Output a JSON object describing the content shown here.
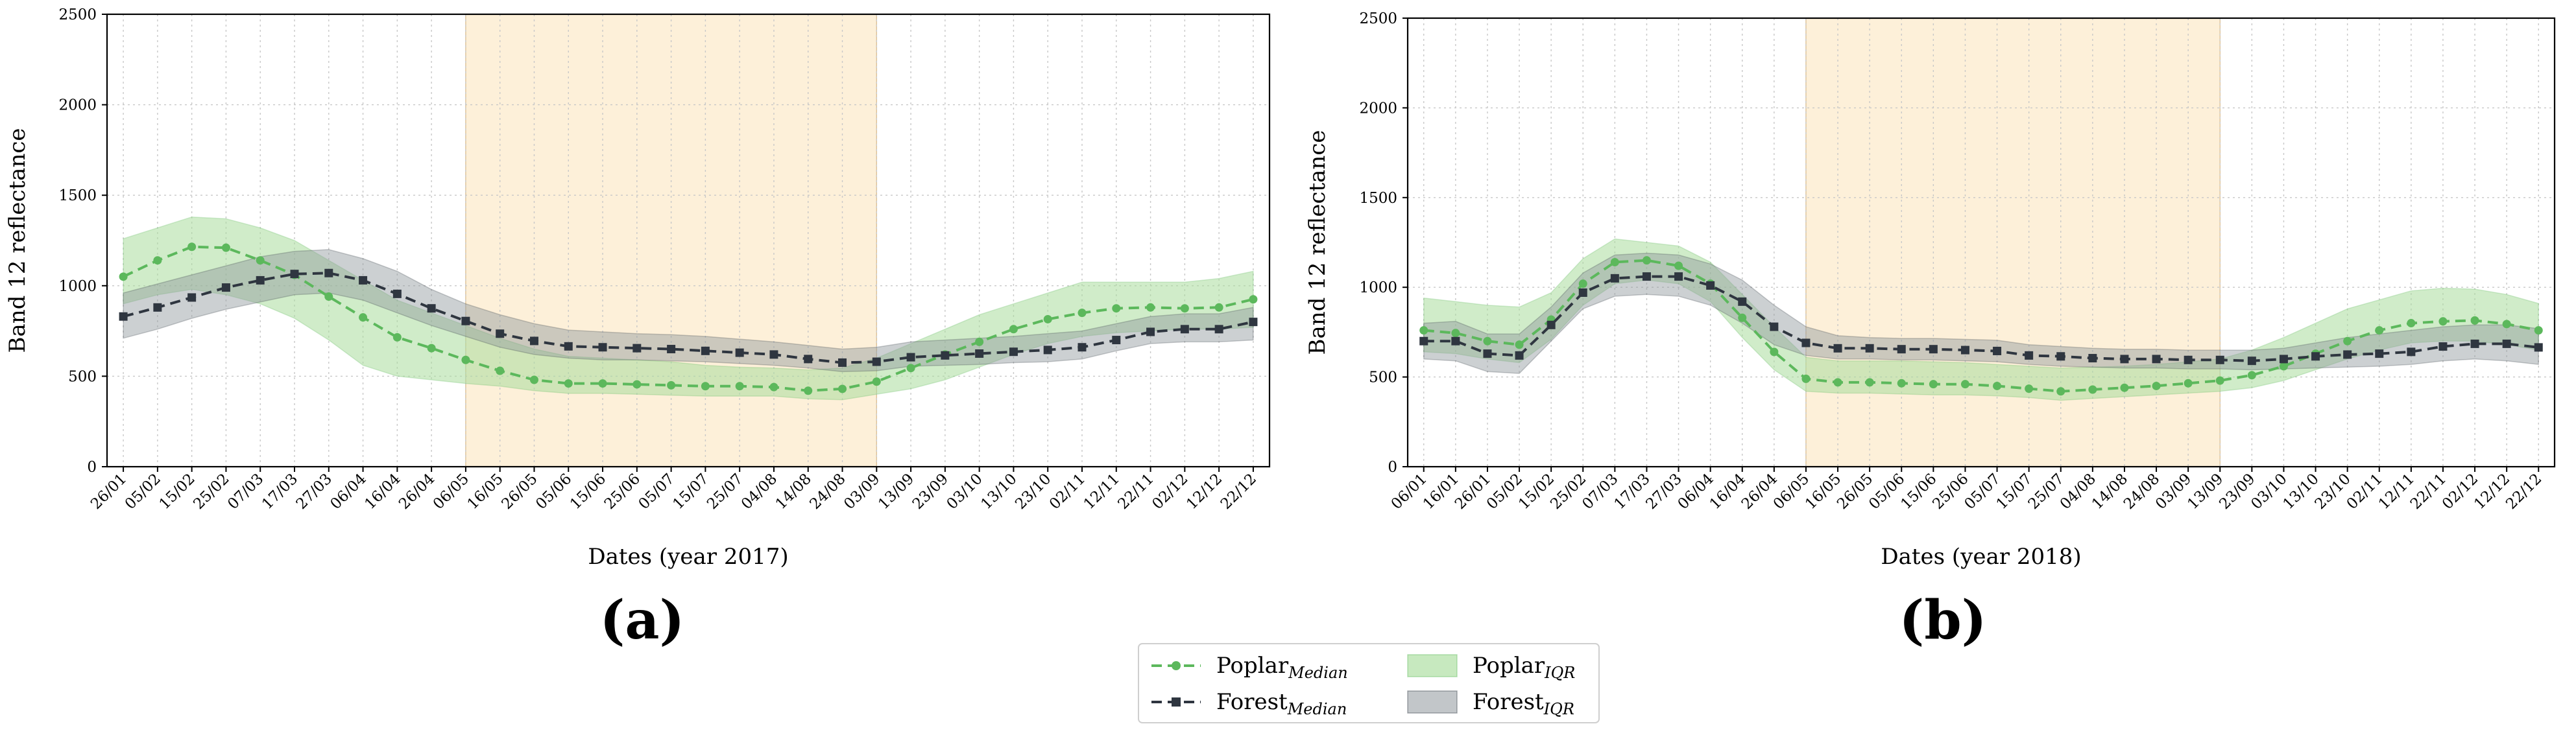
{
  "colors": {
    "poplar": "#5cb85c",
    "poplar_band": "#a9dd9c",
    "forest": "#2f3640",
    "forest_band": "#8f979c",
    "highlight": "#fdf0d9",
    "highlight_edge": "#d8b98a",
    "grid": "#c8c8c8"
  },
  "legend": {
    "items": [
      {
        "key": "poplar_median",
        "label": "Poplar",
        "sub": "Median",
        "kind": "line",
        "series": "poplar"
      },
      {
        "key": "poplar_iqr",
        "label": "Poplar",
        "sub": "IQR",
        "kind": "patch",
        "series": "poplar"
      },
      {
        "key": "forest_median",
        "label": "Forest",
        "sub": "Median",
        "kind": "line",
        "series": "forest"
      },
      {
        "key": "forest_iqr",
        "label": "Forest",
        "sub": "IQR",
        "kind": "patch",
        "series": "forest"
      }
    ]
  },
  "chart_data": [
    {
      "type": "line",
      "panel": "(a)",
      "title": "",
      "xlabel": "Dates (year 2017)",
      "ylabel": "Band 12 reflectance",
      "ylim": [
        0,
        2500
      ],
      "yticks": [
        0,
        500,
        1000,
        1500,
        2000,
        2500
      ],
      "grid": true,
      "categories": [
        "26/01",
        "05/02",
        "15/02",
        "25/02",
        "07/03",
        "17/03",
        "27/03",
        "06/04",
        "16/04",
        "26/04",
        "06/05",
        "16/05",
        "26/05",
        "05/06",
        "15/06",
        "25/06",
        "05/07",
        "15/07",
        "25/07",
        "04/08",
        "14/08",
        "24/08",
        "03/09",
        "13/09",
        "23/09",
        "03/10",
        "13/10",
        "23/10",
        "02/11",
        "12/11",
        "22/11",
        "02/12",
        "12/12",
        "22/12"
      ],
      "highlight_range": [
        "06/05",
        "03/09"
      ],
      "series": [
        {
          "name": "Poplar_Median",
          "color_key": "poplar",
          "marker": "circle",
          "values": [
            1050,
            1140,
            1215,
            1210,
            1140,
            1060,
            940,
            825,
            715,
            655,
            590,
            530,
            480,
            460,
            460,
            455,
            450,
            445,
            445,
            440,
            420,
            430,
            470,
            545,
            620,
            690,
            760,
            815,
            850,
            875,
            880,
            875,
            880,
            925
          ]
        },
        {
          "name": "Poplar_IQR",
          "color_key": "poplar",
          "low": [
            900,
            950,
            980,
            950,
            900,
            820,
            700,
            560,
            500,
            480,
            460,
            445,
            420,
            405,
            405,
            400,
            395,
            390,
            390,
            390,
            375,
            370,
            400,
            430,
            480,
            550,
            620,
            680,
            720,
            740,
            750,
            760,
            760,
            770
          ],
          "high": [
            1260,
            1320,
            1380,
            1370,
            1320,
            1250,
            1140,
            1030,
            920,
            850,
            780,
            710,
            650,
            610,
            600,
            590,
            580,
            560,
            550,
            545,
            535,
            545,
            600,
            680,
            760,
            840,
            900,
            960,
            1020,
            1020,
            1020,
            1020,
            1040,
            1080
          ]
        },
        {
          "name": "Forest_Median",
          "color_key": "forest",
          "marker": "square",
          "values": [
            830,
            880,
            935,
            990,
            1030,
            1065,
            1070,
            1030,
            955,
            875,
            805,
            735,
            695,
            665,
            660,
            655,
            650,
            640,
            630,
            620,
            595,
            575,
            580,
            605,
            615,
            625,
            635,
            645,
            660,
            700,
            745,
            760,
            760,
            800
          ]
        },
        {
          "name": "Forest_IQR",
          "color_key": "forest",
          "low": [
            710,
            760,
            820,
            870,
            910,
            950,
            960,
            920,
            850,
            780,
            720,
            660,
            620,
            600,
            590,
            590,
            585,
            580,
            570,
            560,
            545,
            525,
            530,
            555,
            560,
            565,
            575,
            580,
            595,
            640,
            680,
            690,
            690,
            700
          ],
          "high": [
            960,
            1010,
            1060,
            1110,
            1160,
            1190,
            1200,
            1150,
            1080,
            980,
            900,
            840,
            790,
            755,
            745,
            735,
            730,
            720,
            705,
            690,
            670,
            650,
            660,
            690,
            700,
            710,
            720,
            735,
            750,
            790,
            830,
            845,
            845,
            880
          ]
        }
      ]
    },
    {
      "type": "line",
      "panel": "(b)",
      "title": "",
      "xlabel": "Dates (year 2018)",
      "ylabel": "Band 12 reflectance",
      "ylim": [
        0,
        2500
      ],
      "yticks": [
        0,
        500,
        1000,
        1500,
        2000,
        2500
      ],
      "grid": true,
      "categories": [
        "06/01",
        "16/01",
        "26/01",
        "05/02",
        "15/02",
        "25/02",
        "07/03",
        "17/03",
        "27/03",
        "06/04",
        "16/04",
        "26/04",
        "06/05",
        "16/05",
        "26/05",
        "05/06",
        "15/06",
        "25/06",
        "05/07",
        "15/07",
        "25/07",
        "04/08",
        "14/08",
        "24/08",
        "03/09",
        "13/09",
        "23/09",
        "03/10",
        "13/10",
        "23/10",
        "02/11",
        "12/11",
        "22/11",
        "02/12",
        "12/12",
        "22/12"
      ],
      "highlight_range": [
        "06/05",
        "13/09"
      ],
      "series": [
        {
          "name": "Poplar_Median",
          "color_key": "poplar",
          "marker": "circle",
          "values": [
            760,
            745,
            700,
            680,
            820,
            1020,
            1140,
            1150,
            1120,
            1020,
            830,
            640,
            490,
            470,
            470,
            465,
            460,
            460,
            450,
            435,
            420,
            430,
            440,
            450,
            465,
            480,
            510,
            560,
            630,
            700,
            760,
            800,
            810,
            815,
            795,
            760
          ]
        },
        {
          "name": "Poplar_IQR",
          "color_key": "poplar",
          "low": [
            640,
            630,
            600,
            580,
            710,
            900,
            1020,
            1040,
            1020,
            920,
            720,
            540,
            420,
            410,
            410,
            405,
            400,
            400,
            395,
            385,
            370,
            380,
            390,
            400,
            410,
            420,
            440,
            480,
            540,
            600,
            650,
            690,
            700,
            700,
            680,
            650
          ],
          "high": [
            940,
            920,
            900,
            890,
            970,
            1160,
            1270,
            1250,
            1230,
            1140,
            960,
            780,
            610,
            590,
            590,
            590,
            585,
            580,
            570,
            560,
            550,
            555,
            560,
            570,
            585,
            600,
            650,
            720,
            800,
            880,
            930,
            980,
            995,
            990,
            960,
            910
          ]
        },
        {
          "name": "Forest_Median",
          "color_key": "forest",
          "marker": "square",
          "values": [
            700,
            700,
            630,
            620,
            790,
            970,
            1050,
            1060,
            1060,
            1010,
            920,
            780,
            690,
            660,
            660,
            655,
            655,
            650,
            645,
            620,
            615,
            605,
            600,
            600,
            595,
            595,
            590,
            600,
            615,
            625,
            630,
            640,
            670,
            685,
            685,
            665
          ]
        },
        {
          "name": "Forest_IQR",
          "color_key": "forest",
          "low": [
            600,
            590,
            530,
            520,
            700,
            880,
            950,
            960,
            950,
            900,
            800,
            680,
            620,
            600,
            600,
            595,
            595,
            590,
            585,
            570,
            560,
            555,
            550,
            550,
            545,
            545,
            540,
            545,
            550,
            555,
            560,
            570,
            590,
            600,
            590,
            570
          ],
          "high": [
            800,
            810,
            740,
            740,
            890,
            1080,
            1180,
            1190,
            1180,
            1130,
            1040,
            900,
            780,
            730,
            720,
            715,
            715,
            710,
            705,
            680,
            670,
            660,
            655,
            655,
            650,
            650,
            650,
            660,
            690,
            720,
            740,
            760,
            780,
            790,
            790,
            770
          ]
        }
      ]
    }
  ]
}
